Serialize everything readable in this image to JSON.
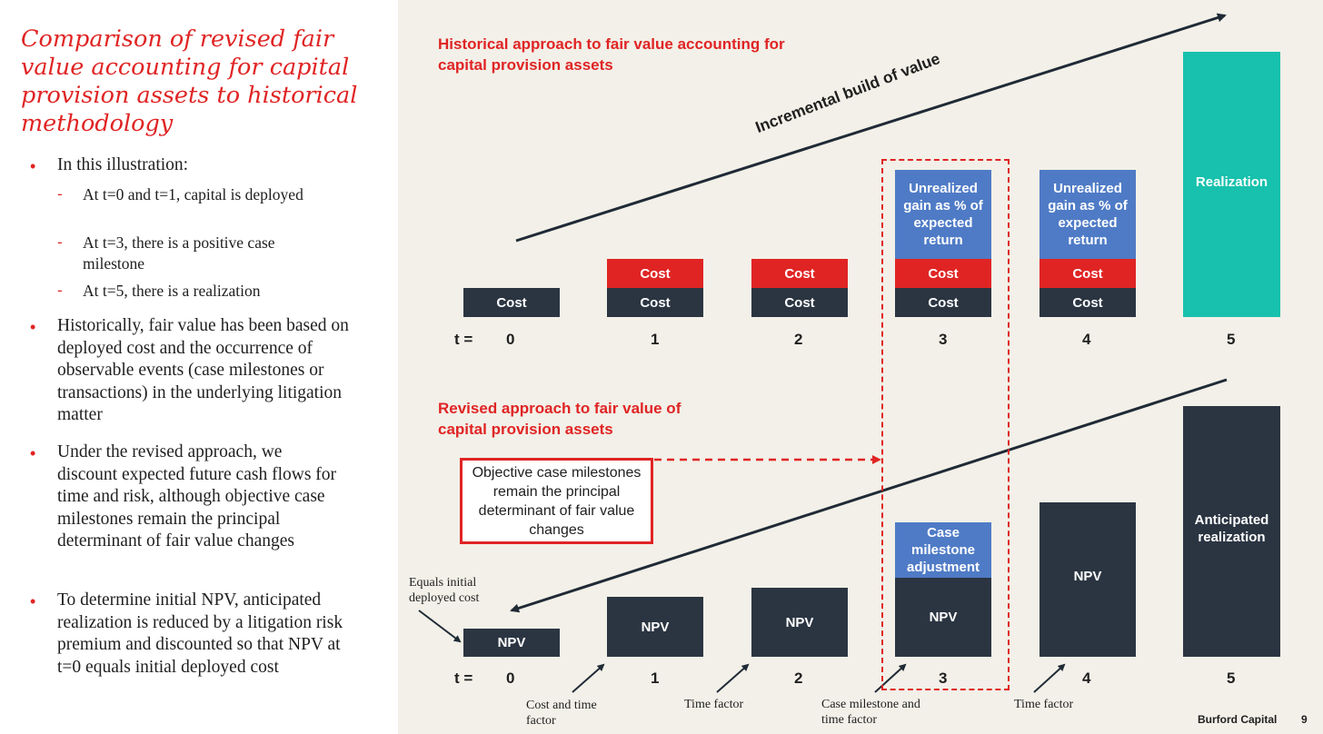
{
  "left_panel": {
    "title": "Comparison of revised fair value accounting for capital provision assets to historical methodology",
    "bullet1": "In this illustration:",
    "sub1": "At t=0 and t=1, capital is deployed",
    "sub2": "At t=3, there is a positive case milestone",
    "sub3": "At t=5, there is a realization",
    "bullet2": "Historically, fair value has been based on deployed cost and the occurrence of observable events (case milestones or transactions) in the underlying litigation matter",
    "bullet3": "Under the revised approach, we discount expected future cash flows for time and risk, although objective case milestones remain the principal determinant of fair value changes",
    "bullet4": "To determine initial NPV, anticipated realization is reduced by a litigation risk premium and discounted so that NPV at t=0 equals initial deployed cost"
  },
  "top_section": {
    "heading": "Historical approach to fair value accounting for capital provision assets",
    "arrow_label": "Incremental build of value",
    "t_label": "t =",
    "times": [
      "0",
      "1",
      "2",
      "3",
      "4",
      "5"
    ],
    "cost_label": "Cost",
    "unrealized_label": "Unrealized gain as % of expected return",
    "realization_label": "Realization"
  },
  "bottom_section": {
    "heading": "Revised approach to fair value of capital provision assets",
    "callout": "Objective case milestones remain the principal determinant of fair value changes",
    "equals_note": "Equals initial deployed cost",
    "t_label": "t =",
    "times": [
      "0",
      "1",
      "2",
      "3",
      "4",
      "5"
    ],
    "npv_label": "NPV",
    "case_adj_label": "Case milestone adjustment",
    "anticipated_label": "Anticipated realization",
    "annotations": {
      "cost_time": "Cost and time factor",
      "time1": "Time factor",
      "case_time": "Case milestone and time factor",
      "time2": "Time factor"
    }
  },
  "footer": {
    "brand": "Burford Capital",
    "page": "9"
  },
  "colors": {
    "accent_red": "#e02424",
    "navy": "#2b3542",
    "blue": "#4f7bc6",
    "teal": "#17c1ad",
    "background": "#f2f0e8"
  }
}
